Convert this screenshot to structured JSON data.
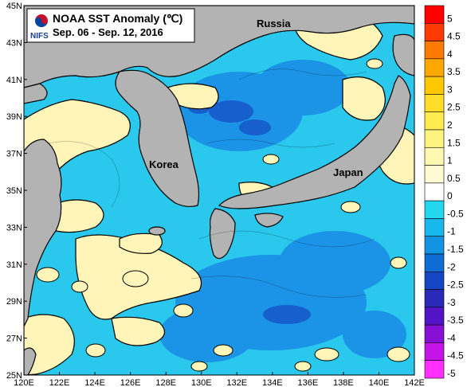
{
  "title": {
    "line1": "NOAA SST Anomaly (℃)",
    "line2": "Sep. 06 - Sep. 12, 2016"
  },
  "logo": {
    "text": "NIFS",
    "icon": "nifs-taeguk-logo"
  },
  "regions": [
    "Russia",
    "Korea",
    "Japan"
  ],
  "axes": {
    "lon_labels": [
      "120E",
      "122E",
      "124E",
      "126E",
      "128E",
      "130E",
      "132E",
      "134E",
      "136E",
      "138E",
      "140E",
      "142E"
    ],
    "lat_labels": [
      "45N",
      "43N",
      "41N",
      "39N",
      "37N",
      "35N",
      "33N",
      "31N",
      "29N",
      "27N",
      "25N"
    ]
  },
  "colorbar": {
    "labels": [
      "5",
      "4.5",
      "4",
      "3.5",
      "3",
      "2.5",
      "2",
      "1.5",
      "1",
      "0.5",
      "0",
      "-0.5",
      "-1",
      "-1.5",
      "-2",
      "-2.5",
      "-3",
      "-3.5",
      "-4",
      "-4.5",
      "-5"
    ],
    "colors": [
      "#ff0000",
      "#ff3a00",
      "#ff7a00",
      "#ffa800",
      "#ffc800",
      "#ffdc28",
      "#ffec50",
      "#fff380",
      "#fff8b0",
      "#fffad2",
      "#ffffff",
      "#22d8ee",
      "#18b8ec",
      "#1294e2",
      "#0f6cd4",
      "#1446c4",
      "#2a28b8",
      "#5214c4",
      "#8810d4",
      "#c414e8",
      "#ff30ff"
    ]
  },
  "chart_data": {
    "type": "heatmap",
    "title": "NOAA SST Anomaly (℃)",
    "period": "Sep. 06 - Sep. 12, 2016",
    "lon_range": [
      120,
      142
    ],
    "lat_range": [
      25,
      45
    ],
    "value_range": [
      -5,
      5
    ],
    "colors": {
      "land": "#b3b3b3",
      "positive_anomaly": "#fff5b8",
      "negative_anomaly": "#29c8ec",
      "strong_negative": "#1c8fe4"
    }
  }
}
